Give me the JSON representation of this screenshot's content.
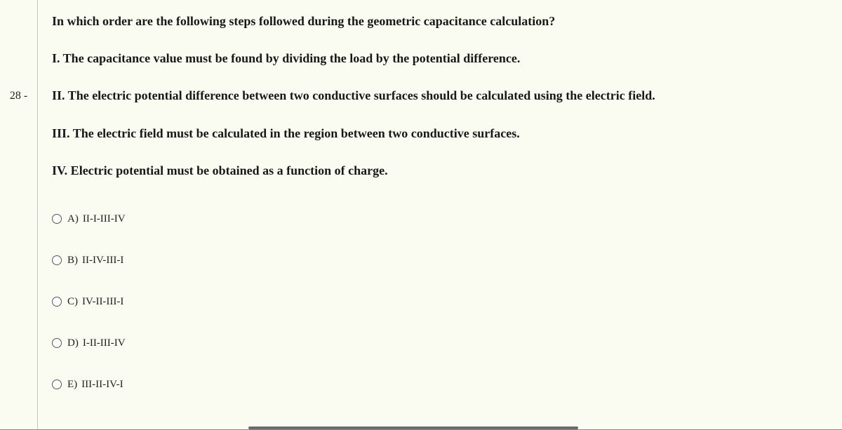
{
  "question": {
    "number": "28 -",
    "stem": "In which order are the following steps followed during the geometric capacitance calculation?",
    "steps": [
      "I. The capacitance value must be found by dividing the load by the potential difference.",
      "II. The electric potential difference between two conductive surfaces should be calculated using the electric field.",
      "III. The electric field must be calculated in the region between two conductive surfaces.",
      "IV. Electric potential must be obtained as a function of charge."
    ],
    "options": [
      {
        "letter": "A)",
        "text": "II-I-III-IV"
      },
      {
        "letter": "B)",
        "text": "II-IV-III-I"
      },
      {
        "letter": "C)",
        "text": "IV-II-III-I"
      },
      {
        "letter": "D)",
        "text": "I-II-III-IV"
      },
      {
        "letter": "E)",
        "text": "III-II-IV-I"
      }
    ]
  },
  "colors": {
    "background": "#fbfcf1",
    "text": "#181818",
    "divider": "#c8c8b0"
  }
}
